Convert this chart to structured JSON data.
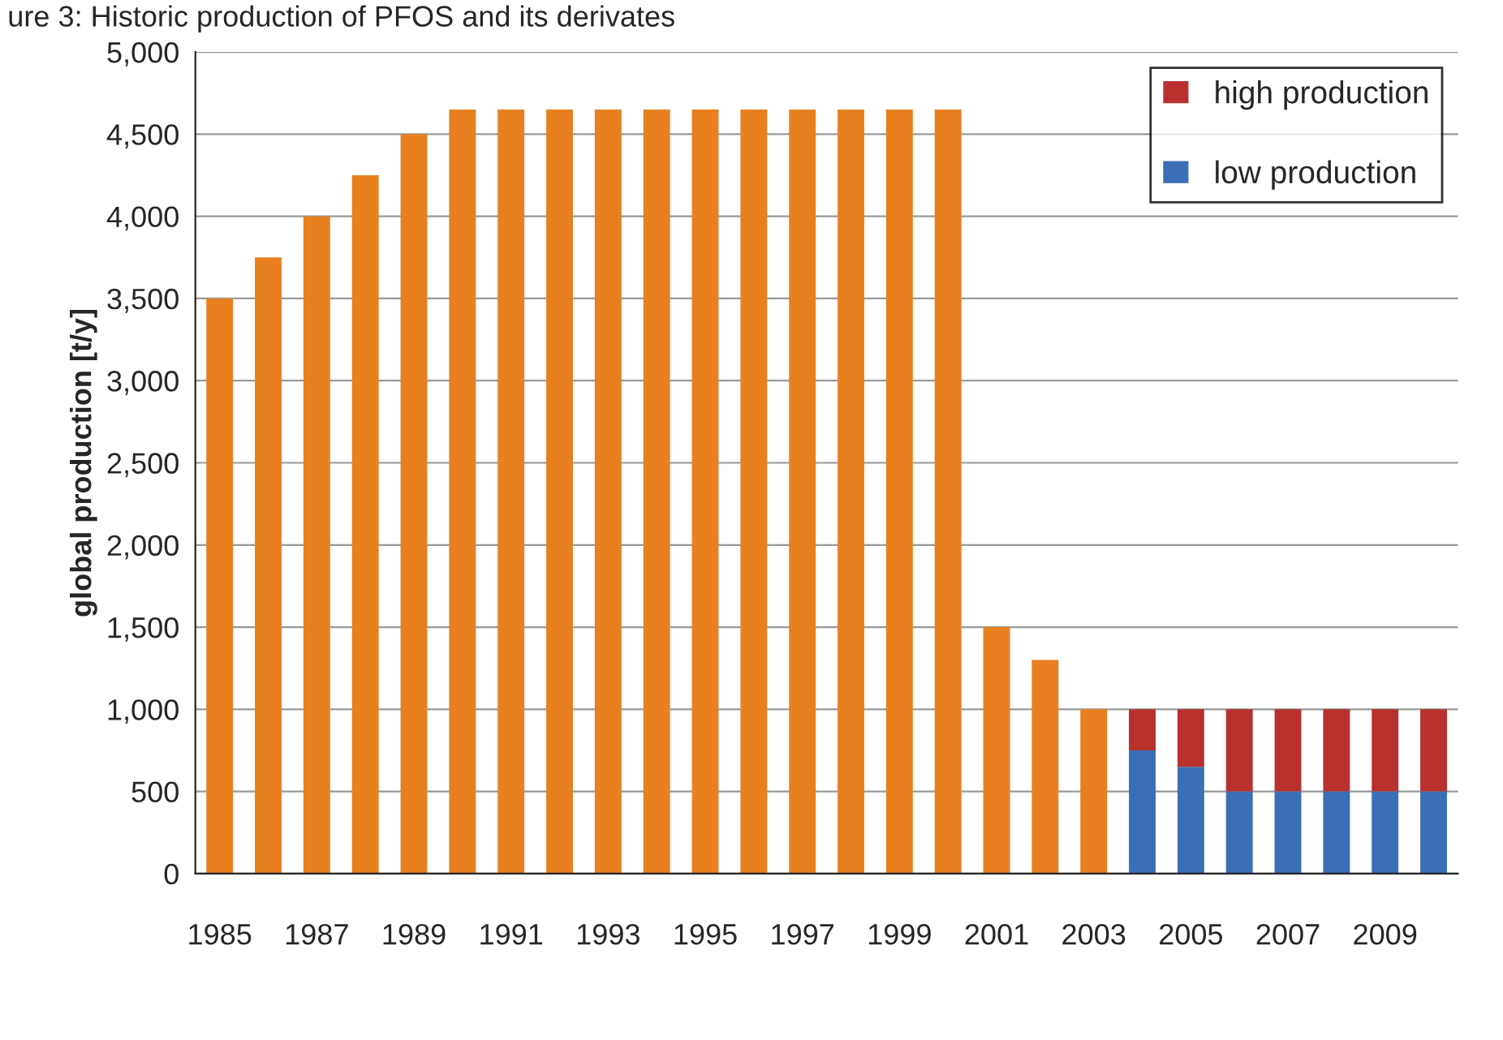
{
  "chart_data": {
    "type": "bar",
    "title": "ure 3: Historic production of PFOS and its derivates",
    "ylabel": "global production [t/y]",
    "categories": [
      "1985",
      null,
      "1987",
      null,
      "1989",
      null,
      "1991",
      null,
      "1993",
      null,
      "1995",
      null,
      "1997",
      null,
      "1999",
      null,
      "2001",
      null,
      "2003",
      null,
      "2005",
      null,
      "2007",
      null,
      "2009",
      null
    ],
    "stacked": true,
    "series": [
      {
        "color": "#e8801f",
        "values": [
          3500,
          3750,
          4000,
          4250,
          4500,
          4650,
          4650,
          4650,
          4650,
          4650,
          4650,
          4650,
          4650,
          4650,
          4650,
          4650,
          1500,
          1300,
          1000,
          null,
          null,
          null,
          null,
          null,
          null,
          null
        ]
      },
      {
        "name": "low production",
        "color": "#3a6fb5",
        "values": [
          null,
          null,
          null,
          null,
          null,
          null,
          null,
          null,
          null,
          null,
          null,
          null,
          null,
          null,
          null,
          null,
          null,
          null,
          null,
          750,
          650,
          500,
          500,
          500,
          500,
          500
        ]
      },
      {
        "name": "high production",
        "color": "#b8312f",
        "values": [
          null,
          null,
          null,
          null,
          null,
          null,
          null,
          null,
          null,
          null,
          null,
          null,
          null,
          null,
          null,
          null,
          null,
          null,
          null,
          250,
          350,
          500,
          500,
          500,
          500,
          500
        ]
      }
    ],
    "ylim": [
      0,
      5000
    ],
    "yticks": [
      {
        "value": 0,
        "label": "0"
      },
      {
        "value": 500,
        "label": "500"
      },
      {
        "value": 1000,
        "label": "1,000"
      },
      {
        "value": 1500,
        "label": "1,500"
      },
      {
        "value": 2000,
        "label": "2,000"
      },
      {
        "value": 2500,
        "label": "2,500"
      },
      {
        "value": 3000,
        "label": "3,000"
      },
      {
        "value": 3500,
        "label": "3,500"
      },
      {
        "value": 4000,
        "label": "4,000"
      },
      {
        "value": 4500,
        "label": "4,500"
      },
      {
        "value": 5000,
        "label": "5,000"
      }
    ],
    "grid": "y",
    "legend": "top right"
  }
}
